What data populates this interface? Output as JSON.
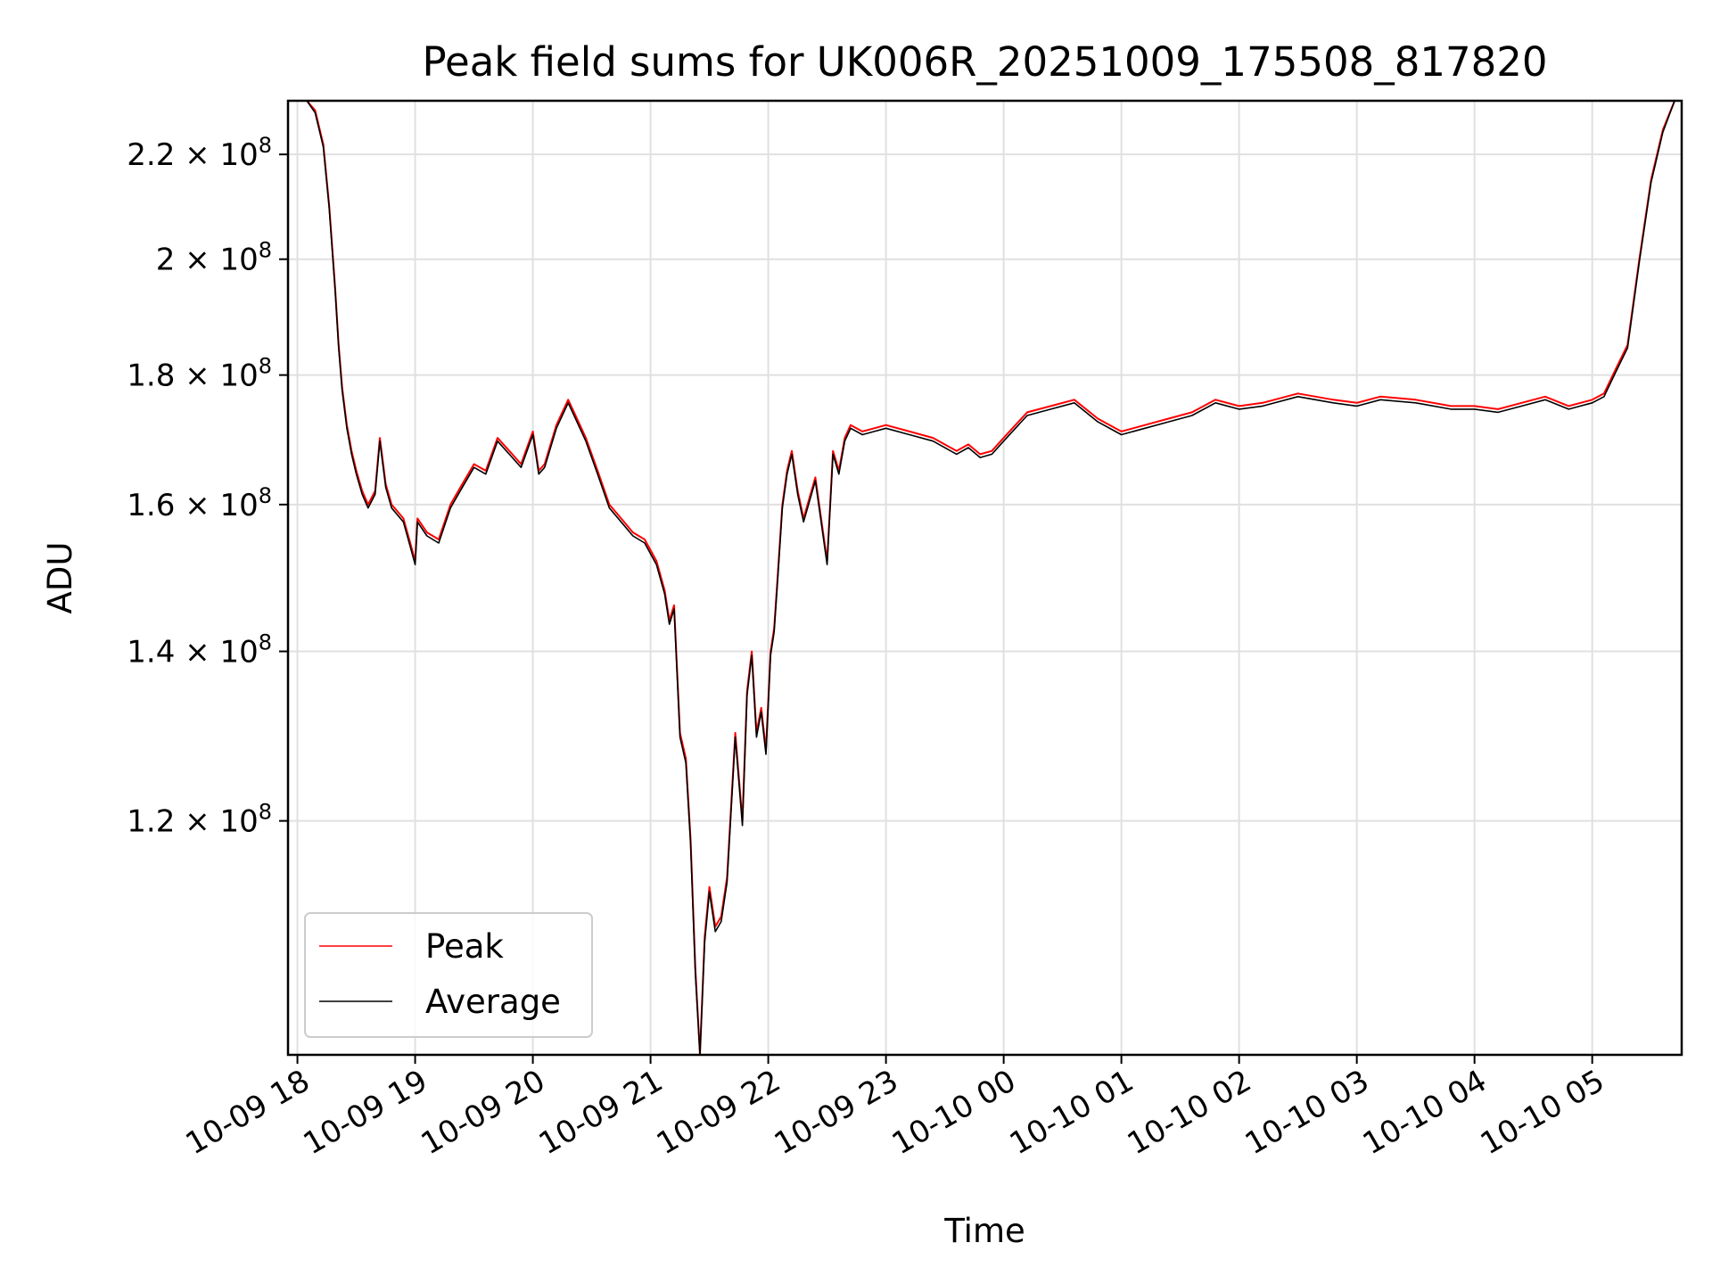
{
  "chart_data": {
    "type": "line",
    "title": "Peak field sums for UK006R_20251009_175508_817820",
    "xlabel": "Time",
    "ylabel": "ADU",
    "x_tick_labels": [
      "10-09 18",
      "10-09 19",
      "10-09 20",
      "10-09 21",
      "10-09 22",
      "10-09 23",
      "10-10 00",
      "10-10 01",
      "10-10 02",
      "10-10 03",
      "10-10 04",
      "10-10 05"
    ],
    "x_range_hours": [
      -0.08,
      11.76
    ],
    "y_scale": "log",
    "ylim": [
      97000000,
      231000000
    ],
    "y_ticks": [
      {
        "value": 120000000,
        "mantissa": "1.2",
        "exp": "8"
      },
      {
        "value": 140000000,
        "mantissa": "1.4",
        "exp": "8"
      },
      {
        "value": 160000000,
        "mantissa": "1.6",
        "exp": "8"
      },
      {
        "value": 180000000,
        "mantissa": "1.8",
        "exp": "8"
      },
      {
        "value": 200000000,
        "mantissa": "2",
        "exp": "8"
      },
      {
        "value": 220000000,
        "mantissa": "2.2",
        "exp": "8"
      }
    ],
    "grid": true,
    "legend_position": "lower-left",
    "series": [
      {
        "name": "Peak",
        "color": "#ff0000",
        "x_hours": [
          -0.08,
          0,
          0.08,
          0.15,
          0.22,
          0.27,
          0.32,
          0.35,
          0.38,
          0.42,
          0.46,
          0.5,
          0.55,
          0.6,
          0.66,
          0.7,
          0.75,
          0.8,
          0.9,
          0.95,
          1.0,
          1.02,
          1.1,
          1.2,
          1.3,
          1.4,
          1.5,
          1.6,
          1.7,
          1.8,
          1.9,
          2.0,
          2.05,
          2.1,
          2.2,
          2.3,
          2.35,
          2.45,
          2.55,
          2.65,
          2.75,
          2.85,
          2.95,
          3.05,
          3.12,
          3.16,
          3.2,
          3.25,
          3.3,
          3.34,
          3.38,
          3.42,
          3.46,
          3.5,
          3.55,
          3.6,
          3.65,
          3.72,
          3.78,
          3.82,
          3.86,
          3.9,
          3.94,
          3.98,
          4.02,
          4.05,
          4.08,
          4.12,
          4.16,
          4.2,
          4.25,
          4.3,
          4.4,
          4.5,
          4.55,
          4.6,
          4.65,
          4.7,
          4.8,
          4.9,
          5.0,
          5.2,
          5.4,
          5.6,
          5.7,
          5.8,
          5.9,
          6.0,
          6.1,
          6.2,
          6.4,
          6.6,
          6.8,
          7.0,
          7.2,
          7.4,
          7.6,
          7.8,
          8.0,
          8.2,
          8.5,
          8.8,
          9.0,
          9.2,
          9.5,
          9.8,
          10.0,
          10.2,
          10.4,
          10.6,
          10.8,
          11.0,
          11.1,
          11.2,
          11.3,
          11.4,
          11.5,
          11.6,
          11.7,
          11.76
        ],
        "values": [
          231000000,
          231000000,
          231000000,
          229000000,
          222000000,
          210000000,
          195000000,
          185000000,
          178000000,
          172000000,
          168000000,
          165000000,
          162000000,
          160000000,
          162000000,
          170000000,
          163000000,
          160000000,
          158000000,
          155000000,
          152000000,
          158000000,
          156000000,
          155000000,
          160000000,
          163000000,
          166000000,
          165000000,
          170000000,
          168000000,
          166000000,
          171000000,
          165000000,
          166000000,
          172000000,
          176000000,
          174000000,
          170000000,
          165000000,
          160000000,
          158000000,
          156000000,
          155000000,
          152000000,
          148000000,
          144000000,
          146000000,
          130000000,
          127000000,
          118000000,
          105000000,
          97000000,
          108000000,
          113000000,
          109000000,
          110000000,
          114000000,
          130000000,
          120000000,
          135000000,
          140000000,
          130000000,
          133000000,
          128000000,
          140000000,
          143000000,
          150000000,
          160000000,
          165000000,
          168000000,
          162000000,
          158000000,
          164000000,
          152000000,
          168000000,
          165000000,
          170000000,
          172000000,
          171000000,
          171500000,
          172000000,
          171000000,
          170000000,
          168000000,
          169000000,
          167500000,
          168000000,
          170000000,
          172000000,
          174000000,
          175000000,
          176000000,
          173000000,
          171000000,
          172000000,
          173000000,
          174000000,
          176000000,
          175000000,
          175500000,
          177000000,
          176000000,
          175500000,
          176500000,
          176000000,
          175000000,
          175000000,
          174500000,
          175500000,
          176500000,
          175000000,
          176000000,
          177000000,
          181000000,
          185000000,
          200000000,
          215000000,
          225000000,
          231000000,
          231000000
        ]
      },
      {
        "name": "Average",
        "color": "#000000",
        "x_hours": [
          -0.08,
          0,
          0.08,
          0.15,
          0.22,
          0.27,
          0.32,
          0.35,
          0.38,
          0.42,
          0.46,
          0.5,
          0.55,
          0.6,
          0.66,
          0.7,
          0.75,
          0.8,
          0.9,
          0.95,
          1.0,
          1.02,
          1.1,
          1.2,
          1.3,
          1.4,
          1.5,
          1.6,
          1.7,
          1.8,
          1.9,
          2.0,
          2.05,
          2.1,
          2.2,
          2.3,
          2.35,
          2.45,
          2.55,
          2.65,
          2.75,
          2.85,
          2.95,
          3.05,
          3.12,
          3.16,
          3.2,
          3.25,
          3.3,
          3.34,
          3.38,
          3.42,
          3.46,
          3.5,
          3.55,
          3.6,
          3.65,
          3.72,
          3.78,
          3.82,
          3.86,
          3.9,
          3.94,
          3.98,
          4.02,
          4.05,
          4.08,
          4.12,
          4.16,
          4.2,
          4.25,
          4.3,
          4.4,
          4.5,
          4.55,
          4.6,
          4.65,
          4.7,
          4.8,
          4.9,
          5.0,
          5.2,
          5.4,
          5.6,
          5.7,
          5.8,
          5.9,
          6.0,
          6.1,
          6.2,
          6.4,
          6.6,
          6.8,
          7.0,
          7.2,
          7.4,
          7.6,
          7.8,
          8.0,
          8.2,
          8.5,
          8.8,
          9.0,
          9.2,
          9.5,
          9.8,
          10.0,
          10.2,
          10.4,
          10.6,
          10.8,
          11.0,
          11.1,
          11.2,
          11.3,
          11.4,
          11.5,
          11.6,
          11.7,
          11.76
        ],
        "values": [
          231000000,
          231000000,
          231000000,
          228500000,
          221500000,
          209500000,
          194500000,
          184500000,
          177500000,
          171500000,
          167500000,
          164500000,
          161500000,
          159500000,
          161500000,
          169500000,
          162500000,
          159500000,
          157500000,
          154500000,
          151500000,
          157500000,
          155500000,
          154500000,
          159500000,
          162500000,
          165500000,
          164500000,
          169500000,
          167500000,
          165500000,
          170500000,
          164500000,
          165500000,
          171500000,
          175500000,
          173500000,
          169500000,
          164500000,
          159500000,
          157500000,
          155500000,
          154500000,
          151500000,
          147500000,
          143500000,
          145500000,
          129500000,
          126500000,
          117500000,
          104500000,
          97000000,
          107500000,
          112500000,
          108500000,
          109500000,
          113500000,
          129500000,
          119500000,
          134500000,
          139500000,
          129500000,
          132500000,
          127500000,
          139500000,
          142500000,
          149500000,
          159500000,
          164500000,
          167500000,
          161500000,
          157500000,
          163500000,
          151500000,
          167500000,
          164500000,
          169500000,
          171500000,
          170500000,
          171000000,
          171500000,
          170500000,
          169500000,
          167500000,
          168500000,
          167000000,
          167500000,
          169500000,
          171500000,
          173500000,
          174500000,
          175500000,
          172500000,
          170500000,
          171500000,
          172500000,
          173500000,
          175500000,
          174500000,
          175000000,
          176500000,
          175500000,
          175000000,
          176000000,
          175500000,
          174500000,
          174500000,
          174000000,
          175000000,
          176000000,
          174500000,
          175500000,
          176500000,
          180500000,
          184500000,
          199500000,
          214500000,
          224500000,
          231000000,
          231000000
        ]
      }
    ]
  }
}
